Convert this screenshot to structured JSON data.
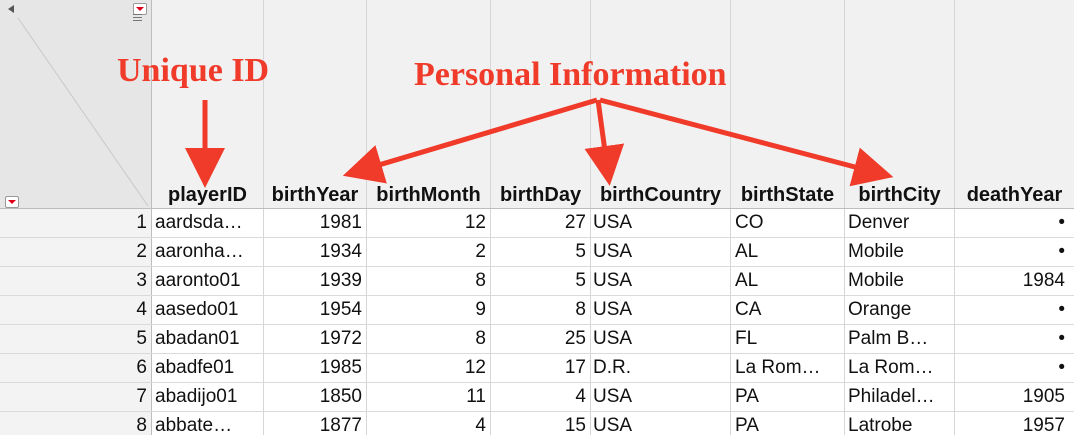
{
  "annotations": {
    "unique_id": "Unique ID",
    "personal_info": "Personal Information"
  },
  "columns": [
    "playerID",
    "birthYear",
    "birthMonth",
    "birthDay",
    "birthCountry",
    "birthState",
    "birthCity",
    "deathYear"
  ],
  "rows": [
    {
      "n": "1",
      "playerID": "aardsda…",
      "birthYear": "1981",
      "birthMonth": "12",
      "birthDay": "27",
      "birthCountry": "USA",
      "birthState": "CO",
      "birthCity": "Denver",
      "deathYear": "•"
    },
    {
      "n": "2",
      "playerID": "aaronha…",
      "birthYear": "1934",
      "birthMonth": "2",
      "birthDay": "5",
      "birthCountry": "USA",
      "birthState": "AL",
      "birthCity": "Mobile",
      "deathYear": "•"
    },
    {
      "n": "3",
      "playerID": "aaronto01",
      "birthYear": "1939",
      "birthMonth": "8",
      "birthDay": "5",
      "birthCountry": "USA",
      "birthState": "AL",
      "birthCity": "Mobile",
      "deathYear": "1984"
    },
    {
      "n": "4",
      "playerID": "aasedo01",
      "birthYear": "1954",
      "birthMonth": "9",
      "birthDay": "8",
      "birthCountry": "USA",
      "birthState": "CA",
      "birthCity": "Orange",
      "deathYear": "•"
    },
    {
      "n": "5",
      "playerID": "abadan01",
      "birthYear": "1972",
      "birthMonth": "8",
      "birthDay": "25",
      "birthCountry": "USA",
      "birthState": "FL",
      "birthCity": "Palm B…",
      "deathYear": "•"
    },
    {
      "n": "6",
      "playerID": "abadfe01",
      "birthYear": "1985",
      "birthMonth": "12",
      "birthDay": "17",
      "birthCountry": "D.R.",
      "birthState": "La Rom…",
      "birthCity": "La Rom…",
      "deathYear": "•"
    },
    {
      "n": "7",
      "playerID": "abadijo01",
      "birthYear": "1850",
      "birthMonth": "11",
      "birthDay": "4",
      "birthCountry": "USA",
      "birthState": "PA",
      "birthCity": "Philadel…",
      "deathYear": "1905"
    },
    {
      "n": "8",
      "playerID": "abbate…",
      "birthYear": "1877",
      "birthMonth": "4",
      "birthDay": "15",
      "birthCountry": "USA",
      "birthState": "PA",
      "birthCity": "Latrobe",
      "deathYear": "1957"
    }
  ],
  "colors": {
    "annotation": "#f03a2a"
  }
}
